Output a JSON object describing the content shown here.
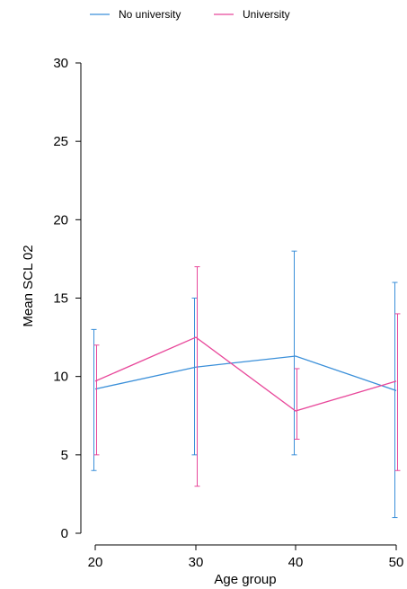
{
  "chart_data": {
    "type": "line",
    "title": "",
    "xlabel": "Age group",
    "ylabel": "Mean SCL 02",
    "x": [
      20,
      30,
      40,
      50
    ],
    "x_ticks": [
      "20",
      "30",
      "40",
      "50"
    ],
    "y_ticks": [
      "0",
      "5",
      "10",
      "15",
      "20",
      "25",
      "30"
    ],
    "ylim": [
      0,
      30
    ],
    "grid": false,
    "legend_position": "top",
    "series": [
      {
        "name": "No university",
        "color": "#3a8fd9",
        "values": [
          9.2,
          10.6,
          11.3,
          9.1
        ],
        "error_low": [
          4.0,
          5.0,
          5.0,
          1.0
        ],
        "error_high": [
          13.0,
          15.0,
          18.0,
          16.0
        ]
      },
      {
        "name": "University",
        "color": "#e8479a",
        "values": [
          9.7,
          12.5,
          7.8,
          9.7
        ],
        "error_low": [
          5.0,
          3.0,
          6.0,
          4.0
        ],
        "error_high": [
          12.0,
          17.0,
          10.5,
          14.0
        ]
      }
    ]
  }
}
